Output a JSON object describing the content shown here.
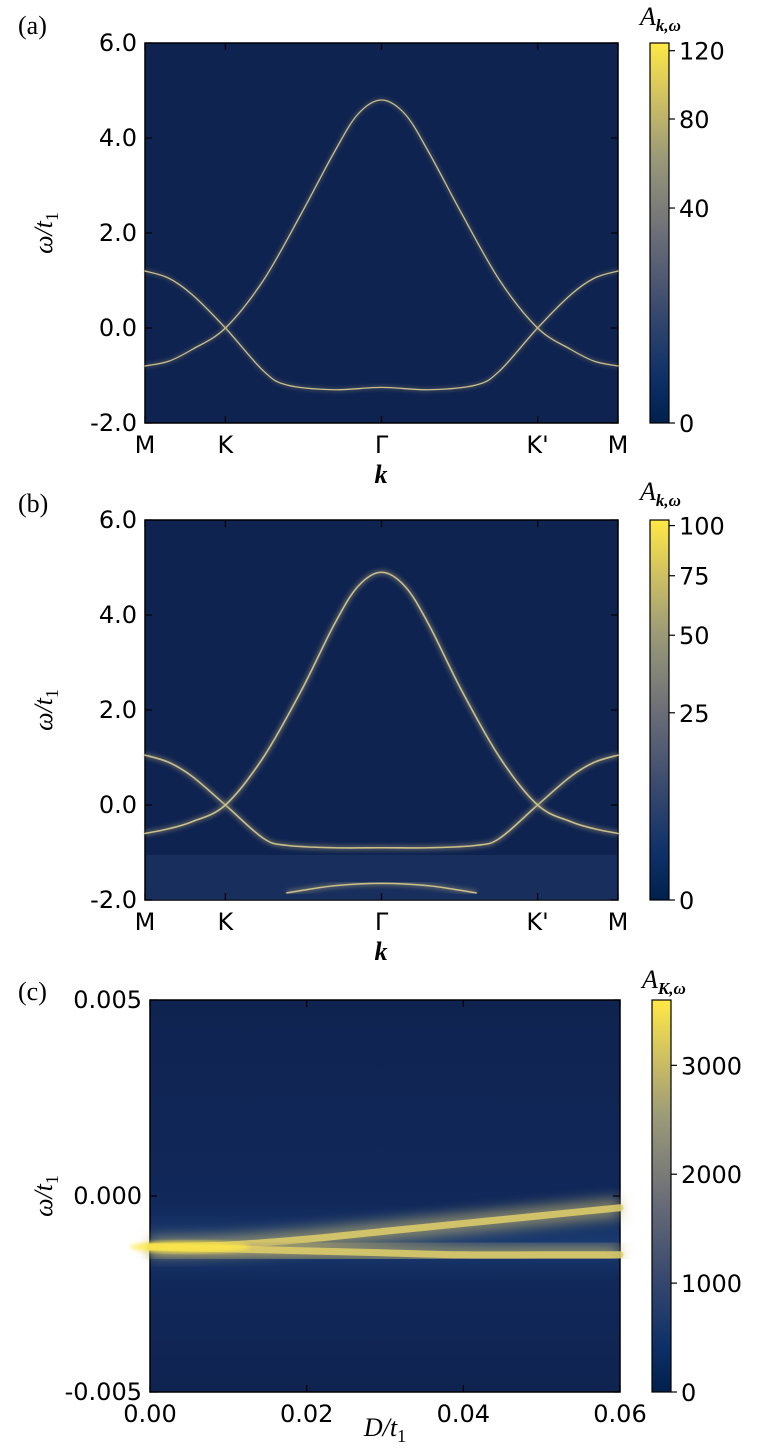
{
  "colors": {
    "background": "#0f2350",
    "colormap": [
      "#00204c",
      "#0e3068",
      "#3a4a6e",
      "#6d6f78",
      "#9b9a78",
      "#cdbf63",
      "#ffe945"
    ]
  },
  "chart_data": [
    {
      "type": "heatmap",
      "panel_label": "(a)",
      "title": "",
      "xlabel": "k",
      "ylabel": "ω/t",
      "ylabel_subscript": "1",
      "x_ticks": [
        "M",
        "K",
        "Γ",
        "K'",
        "M"
      ],
      "y_ticks": [
        "-2.0",
        "0.0",
        "2.0",
        "4.0",
        "6.0"
      ],
      "ylim": [
        -2.0,
        6.0
      ],
      "colorbar_label": "A",
      "colorbar_label_subscript": "k,ω",
      "colorbar_ticks": [
        "0",
        "40",
        "80",
        "120"
      ],
      "colorbar_tick_values": [
        0,
        40,
        80,
        120
      ],
      "colorbar_max": 125,
      "bands": [
        {
          "name": "",
          "k": [
            0,
            0.05,
            0.1,
            0.17,
            0.25,
            0.3,
            0.4,
            0.5,
            0.6,
            0.7,
            0.75,
            0.83,
            0.9,
            0.95,
            1.0
          ],
          "omega": [
            1.2,
            1.05,
            0.7,
            0.0,
            -0.9,
            -1.2,
            -1.3,
            -1.25,
            -1.3,
            -1.2,
            -0.9,
            0.0,
            0.7,
            1.05,
            1.2
          ]
        },
        {
          "name": "",
          "k": [
            0,
            0.05,
            0.1,
            0.17,
            0.25,
            0.33,
            0.4,
            0.45,
            0.5,
            0.55,
            0.6,
            0.67,
            0.75,
            0.83,
            0.9,
            0.95,
            1.0
          ],
          "omega": [
            -0.8,
            -0.7,
            -0.45,
            0.0,
            1.0,
            2.4,
            3.7,
            4.5,
            4.8,
            4.5,
            3.7,
            2.4,
            1.0,
            0.0,
            -0.45,
            -0.7,
            -0.8
          ]
        }
      ]
    },
    {
      "type": "heatmap",
      "panel_label": "(b)",
      "title": "",
      "xlabel": "k",
      "ylabel": "ω/t",
      "ylabel_subscript": "1",
      "x_ticks": [
        "M",
        "K",
        "Γ",
        "K'",
        "M"
      ],
      "y_ticks": [
        "-2.0",
        "0.0",
        "2.0",
        "4.0",
        "6.0"
      ],
      "ylim": [
        -2.0,
        6.0
      ],
      "colorbar_label": "A",
      "colorbar_label_subscript": "k,ω",
      "colorbar_ticks": [
        "0",
        "25",
        "50",
        "75",
        "100"
      ],
      "colorbar_tick_values": [
        0,
        25,
        50,
        75,
        100
      ],
      "colorbar_max": 103,
      "bands": [
        {
          "name": "",
          "k": [
            0,
            0.05,
            0.1,
            0.17,
            0.25,
            0.3,
            0.4,
            0.5,
            0.6,
            0.7,
            0.75,
            0.83,
            0.9,
            0.95,
            1.0
          ],
          "omega": [
            1.05,
            0.9,
            0.6,
            0.0,
            -0.7,
            -0.85,
            -0.9,
            -0.9,
            -0.9,
            -0.85,
            -0.7,
            0.0,
            0.6,
            0.9,
            1.05
          ]
        },
        {
          "name": "",
          "k": [
            0,
            0.05,
            0.1,
            0.17,
            0.25,
            0.33,
            0.4,
            0.45,
            0.5,
            0.55,
            0.6,
            0.67,
            0.75,
            0.83,
            0.9,
            0.95,
            1.0
          ],
          "omega": [
            -0.6,
            -0.5,
            -0.35,
            0.0,
            1.0,
            2.4,
            3.8,
            4.6,
            4.9,
            4.6,
            3.8,
            2.4,
            1.0,
            0.0,
            -0.35,
            -0.5,
            -0.6
          ]
        },
        {
          "name": "",
          "k": [
            0.3,
            0.4,
            0.5,
            0.6,
            0.7
          ],
          "omega": [
            -1.85,
            -1.7,
            -1.65,
            -1.7,
            -1.85
          ]
        }
      ]
    },
    {
      "type": "heatmap",
      "panel_label": "(c)",
      "title": "",
      "xlabel": "D/t",
      "xlabel_subscript": "1",
      "ylabel": "ω/t",
      "ylabel_subscript": "1",
      "x_ticks": [
        "0.00",
        "0.02",
        "0.04",
        "0.06"
      ],
      "x_tick_values": [
        0.0,
        0.02,
        0.04,
        0.06
      ],
      "xlim": [
        0.0,
        0.06
      ],
      "y_ticks": [
        "-0.005",
        "0.000",
        "0.005"
      ],
      "ylim": [
        -0.005,
        0.005
      ],
      "colorbar_label": "A",
      "colorbar_label_subscript": "K,ω",
      "colorbar_ticks": [
        "0",
        "1000",
        "2000",
        "3000"
      ],
      "colorbar_tick_values": [
        0,
        1000,
        2000,
        3000
      ],
      "colorbar_max": 3600,
      "bands": [
        {
          "name": "",
          "x": [
            0.0,
            0.01,
            0.02,
            0.03,
            0.04,
            0.05,
            0.06
          ],
          "omega": [
            -0.0013,
            -0.00125,
            -0.0011,
            -0.0009,
            -0.0007,
            -0.0005,
            -0.0003
          ]
        },
        {
          "name": "",
          "x": [
            0.0,
            0.01,
            0.02,
            0.03,
            0.04,
            0.05,
            0.06
          ],
          "omega": [
            -0.0013,
            -0.00135,
            -0.0014,
            -0.00145,
            -0.0015,
            -0.0015,
            -0.0015
          ]
        }
      ]
    }
  ]
}
